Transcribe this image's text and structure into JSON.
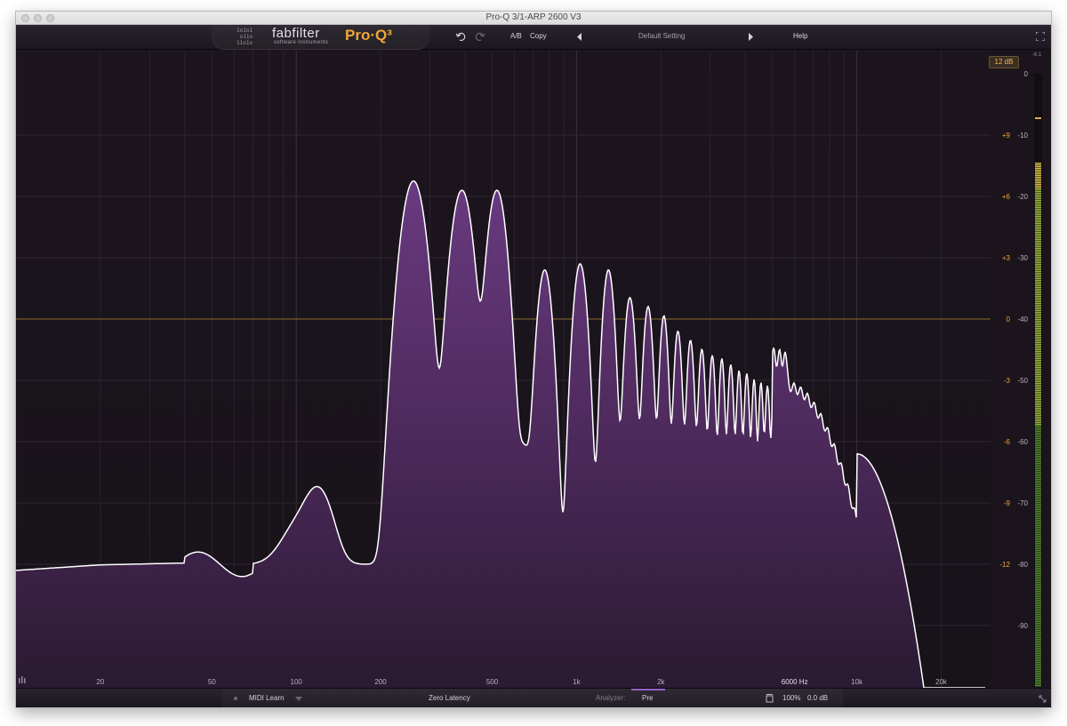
{
  "window": {
    "title": "Pro-Q 3/1-ARP 2600 V3"
  },
  "logo": {
    "bits": "1o1o1\n o11o\n11o1o",
    "brand": "fabfilter",
    "brand_sub": "software instruments",
    "product": "Pro·Q³"
  },
  "header": {
    "ab_label": "A/B",
    "copy_label": "Copy",
    "preset_name": "Default Setting",
    "help_label": "Help"
  },
  "display": {
    "range_badge": "12 dB",
    "meter_peak_label": "-6.1",
    "eq_scale": [
      "+9",
      "+6",
      "+3",
      "0",
      "-3",
      "-6",
      "-9",
      "-12"
    ],
    "analyzer_scale": [
      "0",
      "-10",
      "-20",
      "-30",
      "-40",
      "-50",
      "-60",
      "-70",
      "-80",
      "-90"
    ],
    "freq_labels": [
      {
        "label": "20",
        "hz": 20
      },
      {
        "label": "50",
        "hz": 50
      },
      {
        "label": "100",
        "hz": 100
      },
      {
        "label": "200",
        "hz": 200
      },
      {
        "label": "500",
        "hz": 500
      },
      {
        "label": "1k",
        "hz": 1000
      },
      {
        "label": "2k",
        "hz": 2000
      },
      {
        "label": "6000 Hz",
        "hz": 6000
      },
      {
        "label": "10k",
        "hz": 10000
      },
      {
        "label": "20k",
        "hz": 20000
      }
    ]
  },
  "footer": {
    "midi_learn": "MIDI Learn",
    "latency": "Zero Latency",
    "analyzer_label": "Analyzer:",
    "analyzer_value": "Pre",
    "zoom": "100%",
    "output_gain": "0.0 dB"
  },
  "colors": {
    "accent": "#f0a638",
    "spectrum_fill": "#5a2f6c",
    "spectrum_line": "#ffffff",
    "zero_line": "#8a6a2a"
  }
}
